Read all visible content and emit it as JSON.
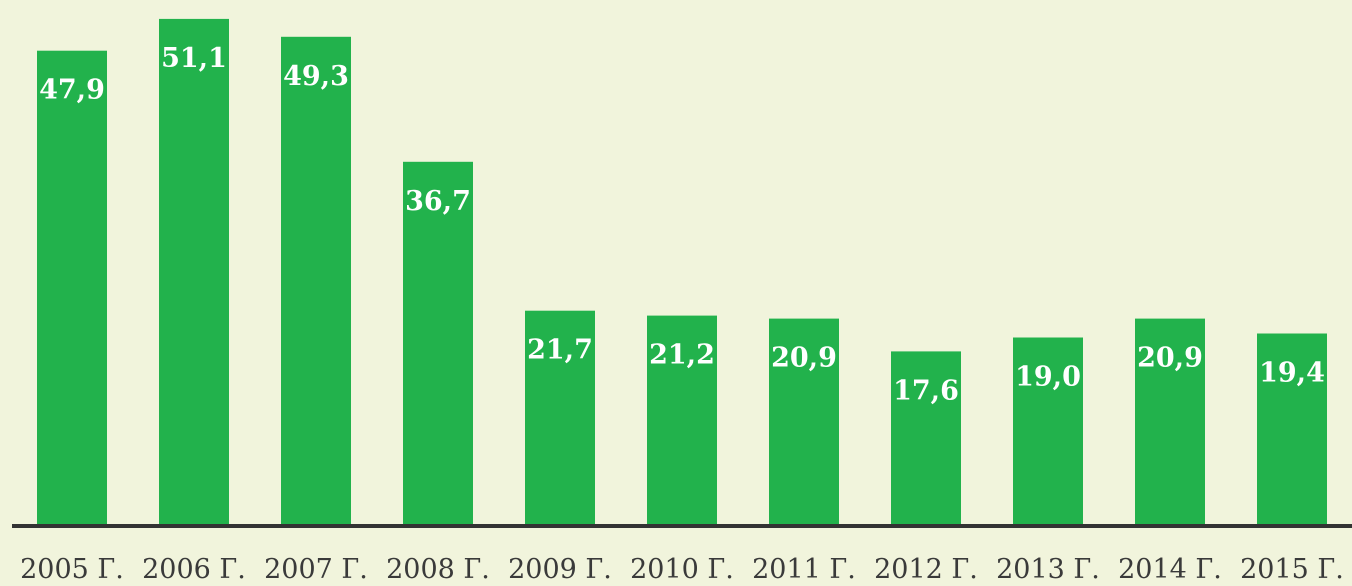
{
  "chart_data": {
    "type": "bar",
    "categories": [
      "2005 Г.",
      "2006 Г.",
      "2007 Г.",
      "2008 Г.",
      "2009 Г.",
      "2010 Г.",
      "2011 Г.",
      "2012 Г.",
      "2013 Г.",
      "2014 Г.",
      "2015 Г."
    ],
    "values": [
      47.9,
      51.1,
      49.3,
      36.7,
      21.7,
      21.2,
      20.9,
      17.6,
      19.0,
      20.9,
      19.4
    ],
    "value_labels": [
      "47,9",
      "51,1",
      "49,3",
      "36,7",
      "21,7",
      "21,2",
      "20,9",
      "17,6",
      "19,0",
      "20,9",
      "19,4"
    ],
    "title": "",
    "xlabel": "",
    "ylabel": "",
    "ylim": [
      0,
      52
    ],
    "grid": false,
    "legend": "none",
    "colors": {
      "bar": "#22b24c",
      "background": "#f1f4dc",
      "axis": "#333333",
      "label": "#ffffff",
      "tick": "#3a3a3a"
    }
  }
}
